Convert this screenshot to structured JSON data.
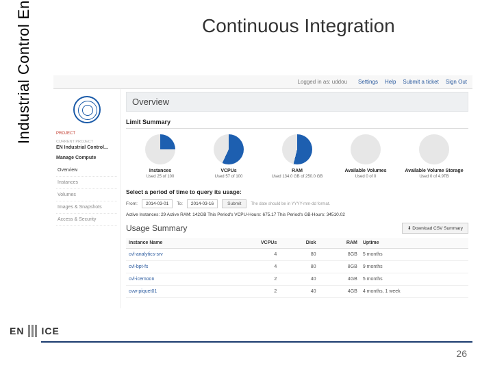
{
  "slide": {
    "title": "Continuous Integration",
    "vertical_label": "Industrial Control Engineering",
    "page_number": "26",
    "logo_en": "EN",
    "logo_ice": "ICE",
    "bottom_rule_color": "#1a3a6e"
  },
  "topbar": {
    "logged_in_prefix": "Logged in as:",
    "user": "uddou",
    "links": {
      "settings": "Settings",
      "help": "Help",
      "submit": "Submit a ticket",
      "signout": "Sign Out"
    }
  },
  "sidebar": {
    "project_label": "Project",
    "current_project_label": "CURRENT PROJECT",
    "current_project_name": "EN Industrial Control...",
    "manage_label": "Manage Compute",
    "items": [
      {
        "label": "Overview",
        "active": true
      },
      {
        "label": "Instances",
        "active": false
      },
      {
        "label": "Volumes",
        "active": false
      },
      {
        "label": "Images & Snapshots",
        "active": false
      },
      {
        "label": "Access & Security",
        "active": false
      }
    ]
  },
  "overview": {
    "header": "Overview",
    "limit_summary_title": "Limit Summary",
    "charts": [
      {
        "label": "Instances",
        "sub": "Used 25 of 100",
        "pct": 25,
        "color": "#1d5fb0",
        "empty": "#e7e7e7"
      },
      {
        "label": "VCPUs",
        "sub": "Used 57 of 100",
        "pct": 57,
        "color": "#1d5fb0",
        "empty": "#e7e7e7"
      },
      {
        "label": "RAM",
        "sub": "Used 134.0 GB of 250.0 GB",
        "pct": 54,
        "color": "#1d5fb0",
        "empty": "#e7e7e7"
      },
      {
        "label": "Available Volumes",
        "sub": "Used 0 of 0",
        "pct": 0,
        "color": "#1d5fb0",
        "empty": "#e7e7e7"
      },
      {
        "label": "Available Volume Storage",
        "sub": "Used 0 of 4.9TB",
        "pct": 0,
        "color": "#1d5fb0",
        "empty": "#e7e7e7"
      }
    ],
    "period": {
      "title": "Select a period of time to query its usage:",
      "from_label": "From:",
      "from_value": "2014-03-01",
      "to_label": "To:",
      "to_value": "2014-03-16",
      "submit_label": "Submit",
      "note": "The date should be in YYYY-mm-dd format."
    },
    "active_line": {
      "text": "Active Instances: 29 Active RAM: 142GB This Period's VCPU-Hours: 675.17 This Period's GB-Hours: 34510.02"
    },
    "usage": {
      "title": "Usage Summary",
      "download_label": "Download CSV Summary",
      "columns": [
        "Instance Name",
        "VCPUs",
        "Disk",
        "RAM",
        "Uptime"
      ],
      "col_align": [
        "l",
        "r",
        "r",
        "r",
        "l"
      ],
      "rows": [
        [
          "cvl-analytics-srv",
          "4",
          "80",
          "8GB",
          "5 months"
        ],
        [
          "cvl-bpt-fs",
          "4",
          "80",
          "8GB",
          "9 months"
        ],
        [
          "cvl-icemoon",
          "2",
          "40",
          "4GB",
          "5 months"
        ],
        [
          "cvw-piquet01",
          "2",
          "40",
          "4GB",
          "4 months, 1 week"
        ]
      ]
    }
  }
}
